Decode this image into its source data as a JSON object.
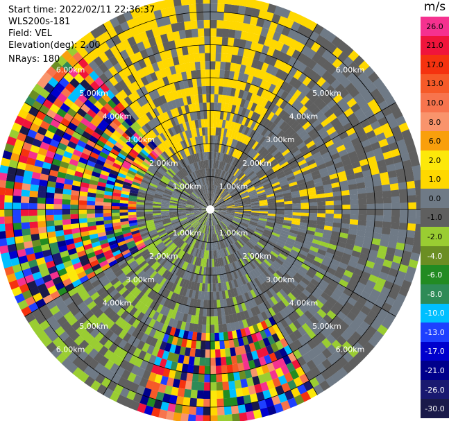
{
  "info": {
    "start_time": "Start time: 2022/02/11 22:36:37",
    "instrument": "WLS200s-181",
    "field": "Field: VEL",
    "elevation": "Elevation(deg): 2.00",
    "nrays": "NRays: 180"
  },
  "chart_data": {
    "type": "heatmap",
    "projection": "polar PPI scan",
    "max_range_km": 6.5,
    "range_rings_km": [
      1,
      2,
      3,
      4,
      5,
      6
    ],
    "ring_labels": [
      "1.00km",
      "2.00km",
      "3.00km",
      "4.00km",
      "5.00km",
      "6.00km"
    ],
    "spoke_step_deg": 30,
    "colorbar": {
      "unit": "m/s",
      "levels": [
        {
          "label": "26.0",
          "color": "#f5318f"
        },
        {
          "label": "21.0",
          "color": "#f0143b"
        },
        {
          "label": "17.0",
          "color": "#f5320f"
        },
        {
          "label": "13.0",
          "color": "#f65a28"
        },
        {
          "label": "10.0",
          "color": "#f7744d"
        },
        {
          "label": "8.0",
          "color": "#f9946c"
        },
        {
          "label": "6.0",
          "color": "#f99f0c"
        },
        {
          "label": "2.0",
          "color": "#fce80a"
        },
        {
          "label": "1.0",
          "color": "#ffd800"
        },
        {
          "label": "0.0",
          "color": "#6f7a86"
        },
        {
          "label": "-1.0",
          "color": "#5f5f5f"
        },
        {
          "label": "-2.0",
          "color": "#9acd32"
        },
        {
          "label": "-4.0",
          "color": "#6b8e23"
        },
        {
          "label": "-6.0",
          "color": "#228b22"
        },
        {
          "label": "-8.0",
          "color": "#2e8b57"
        },
        {
          "label": "-10.0",
          "color": "#00bfff"
        },
        {
          "label": "-13.0",
          "color": "#1e40ff"
        },
        {
          "label": "-17.0",
          "color": "#0000cd"
        },
        {
          "label": "-21.0",
          "color": "#00008b"
        },
        {
          "label": "-26.0",
          "color": "#191970"
        },
        {
          "label": "-30.0",
          "color": "#1a1a4a"
        }
      ]
    },
    "sectors": [
      {
        "from_deg": -30,
        "to_deg": 30,
        "pattern": "yellow-gray",
        "note": "north"
      },
      {
        "from_deg": 30,
        "to_deg": 100,
        "pattern": "gray-yellow"
      },
      {
        "from_deg": 100,
        "to_deg": 150,
        "pattern": "gray-green"
      },
      {
        "from_deg": 150,
        "to_deg": 200,
        "pattern": "multicolor",
        "from_km": 3.8
      },
      {
        "from_deg": 200,
        "to_deg": 240,
        "pattern": "green-gray"
      },
      {
        "from_deg": 240,
        "to_deg": 320,
        "pattern": "multicolor",
        "from_km": 2.5
      }
    ],
    "colors": {
      "gray_dark": "#5f5f5f",
      "gray_blue": "#6f7a86",
      "yellow": "#ffd800",
      "green": "#9acd32",
      "background": "#ffffff",
      "grid": "#000000",
      "label": "#ffffff"
    }
  }
}
